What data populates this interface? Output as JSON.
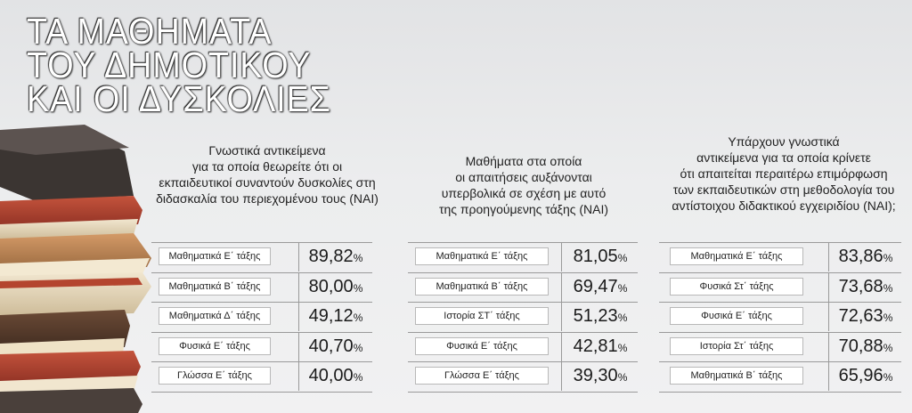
{
  "title": {
    "line1": "ΤΑ ΜΑΘΗΜΑΤΑ",
    "line2": "ΤΟΥ ΔΗΜΟΤΙΚΟΥ",
    "line3": "ΚΑΙ ΟΙ ΔΥΣΚΟΛΙΕΣ"
  },
  "chart_data": [
    {
      "type": "table",
      "title_lines": [
        "Γνωστικά αντικείμενα",
        "για τα οποία θεωρείτε ότι οι",
        "εκπαιδευτικοί συναντούν δυσκολίες στη",
        "διδασκαλία του περιεχομένου τους (ΝΑΙ)"
      ],
      "unit": "%",
      "rows": [
        {
          "label": "Μαθηματικά Ε΄ τάξης",
          "value": "89,82"
        },
        {
          "label": "Μαθηματικά Β΄ τάξης",
          "value": "80,00"
        },
        {
          "label": "Μαθηματικά Δ΄ τάξης",
          "value": "49,12"
        },
        {
          "label": "Φυσικά Ε΄ τάξης",
          "value": "40,70"
        },
        {
          "label": "Γλώσσα Ε΄ τάξης",
          "value": "40,00"
        }
      ]
    },
    {
      "type": "table",
      "title_lines": [
        "Μαθήματα στα οποία",
        "οι απαιτήσεις αυξάνονται",
        "υπερβολικά σε σχέση με αυτό",
        "της προηγούμενης τάξης (ΝΑΙ)"
      ],
      "unit": "%",
      "rows": [
        {
          "label": "Μαθηματικά Ε΄ τάξης",
          "value": "81,05"
        },
        {
          "label": "Μαθηματικά Β΄ τάξης",
          "value": "69,47"
        },
        {
          "label": "Ιστορία ΣΤ΄ τάξης",
          "value": "51,23"
        },
        {
          "label": "Φυσικά Ε΄ τάξης",
          "value": "42,81"
        },
        {
          "label": "Γλώσσα Ε΄ τάξης",
          "value": "39,30"
        }
      ]
    },
    {
      "type": "table",
      "title_lines": [
        "Υπάρχουν γνωστικά",
        "αντικείμενα για τα οποία κρίνετε",
        "ότι απαιτείται περαιτέρω επιμόρφωση",
        "των εκπαιδευτικών στη μεθοδολογία του",
        "αντίστοιχου διδακτικού εγχειριδίου (ΝΑΙ);"
      ],
      "unit": "%",
      "rows": [
        {
          "label": "Μαθηματικά Ε΄ τάξης",
          "value": "83,86"
        },
        {
          "label": "Φυσικά Στ΄ τάξης",
          "value": "73,68"
        },
        {
          "label": "Φυσικά Ε΄ τάξης",
          "value": "72,63"
        },
        {
          "label": "Ιστορία Στ΄ τάξης",
          "value": "70,88"
        },
        {
          "label": "Μαθηματικά Β΄ τάξης",
          "value": "65,96"
        }
      ]
    }
  ]
}
